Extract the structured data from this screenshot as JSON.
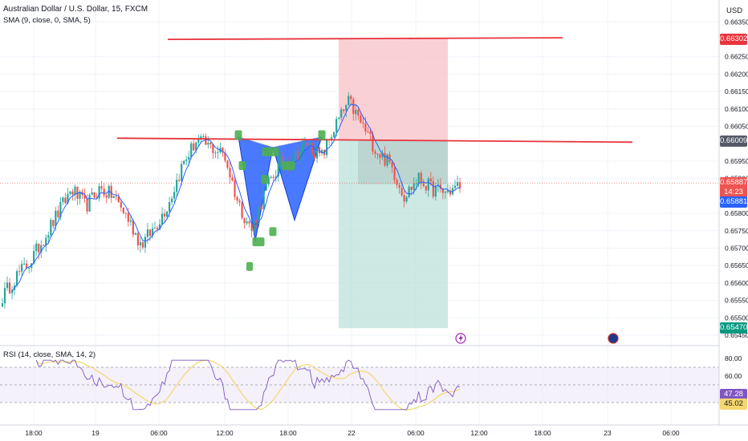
{
  "header": {
    "symbol_line": "Australian Dollar / U.S. Dollar, 15, FXCM",
    "sma_line": "SMA (9, close, 0, SMA, 5)",
    "rsi_line": "RSI (14, close, SMA, 14, 2)",
    "currency": "USD"
  },
  "price_axis": {
    "ticks": [
      "0.66350",
      "0.66250",
      "0.66200",
      "0.66150",
      "0.66100",
      "0.66050",
      "0.65950",
      "0.65900",
      "0.65800",
      "0.65750",
      "0.65700",
      "0.65650",
      "0.65600",
      "0.65550",
      "0.65500",
      "0.65450"
    ],
    "markers": {
      "stop_level": "0.66302",
      "resistance_level": "0.66009",
      "last_price": "0.65887",
      "countdown": "14:23",
      "sma_value": "0.65881",
      "target_level": "0.65470"
    }
  },
  "rsi_axis": {
    "ticks": [
      "80.00",
      "60.00"
    ],
    "rsi_value": "47.28",
    "rsi_sma_value": "45.02"
  },
  "time_axis": {
    "ticks": [
      "18:00",
      "19",
      "06:00",
      "12:00",
      "18:00",
      "22",
      "06:00",
      "12:00",
      "18:00",
      "23",
      "06:00"
    ]
  },
  "colors": {
    "up_candle": "#26a69a",
    "down_candle": "#ef5350",
    "sma_line": "#2962ff",
    "red_line": "#e8343d",
    "stop_zone": "#f8c6c9",
    "target_zone": "#bfe3dc",
    "pattern_fill": "#2962ff",
    "pattern_point": "#4caf50",
    "rsi_line": "#7e57c2",
    "rsi_sma": "#f5d76e",
    "rsi_band": "#ede7f6"
  },
  "chart_data": {
    "type": "candlestick",
    "instrument": "Australian Dollar / U.S. Dollar, 15, FXCM",
    "y_range": [
      0.6543,
      0.6639
    ],
    "horizontal_levels": [
      0.66302,
      0.66009
    ],
    "position_tool": {
      "entry": 0.66009,
      "stop": 0.66302,
      "target": 0.6547
    },
    "harmonic_points": [
      0.6602,
      0.6572,
      0.6599,
      0.6578,
      0.6602
    ],
    "last_price": 0.65887,
    "sma_last": 0.65881,
    "rsi": {
      "value": 47.28,
      "sma": 45.02,
      "bands": [
        70,
        30
      ]
    },
    "close_path": [
      0.6556,
      0.6562,
      0.6566,
      0.6573,
      0.658,
      0.6587,
      0.6582,
      0.6587,
      0.6585,
      0.6579,
      0.6571,
      0.6576,
      0.6583,
      0.6594,
      0.6601,
      0.6599,
      0.6597,
      0.6583,
      0.6575,
      0.6587,
      0.6594,
      0.6596,
      0.66,
      0.6596,
      0.6605,
      0.6612,
      0.6605,
      0.6598,
      0.6594,
      0.6585,
      0.659,
      0.6587,
      0.6586,
      0.6588
    ]
  }
}
